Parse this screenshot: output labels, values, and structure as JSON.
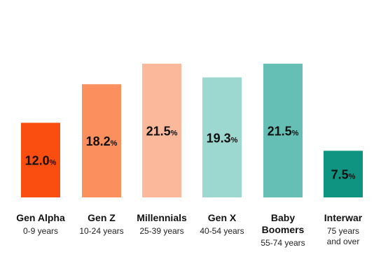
{
  "chart_data": {
    "type": "bar",
    "categories": [
      "Gen Alpha",
      "Gen Z",
      "Millennials",
      "Gen X",
      "Baby Boomers",
      "Interwar"
    ],
    "category_labels": [
      [
        "Gen Alpha"
      ],
      [
        "Gen Z"
      ],
      [
        "Millennials"
      ],
      [
        "Gen X"
      ],
      [
        "Baby",
        "Boomers"
      ],
      [
        "Interwar"
      ]
    ],
    "sublabels": [
      [
        "0-9 years"
      ],
      [
        "10-24 years"
      ],
      [
        "25-39 years"
      ],
      [
        "40-54 years"
      ],
      [
        "55-74 years"
      ],
      [
        "75 years",
        "and over"
      ]
    ],
    "values": [
      12.0,
      18.2,
      21.5,
      19.3,
      21.5,
      7.5
    ],
    "value_labels": [
      "12.0",
      "18.2",
      "21.5",
      "19.3",
      "21.5",
      "7.5"
    ],
    "unit": "%",
    "colors": [
      "#f94e0f",
      "#fc8f5e",
      "#fcb89a",
      "#9dd8d0",
      "#66bfb5",
      "#0f9481"
    ],
    "ylim": [
      0,
      21.5
    ],
    "grid": false,
    "legend": "none"
  }
}
